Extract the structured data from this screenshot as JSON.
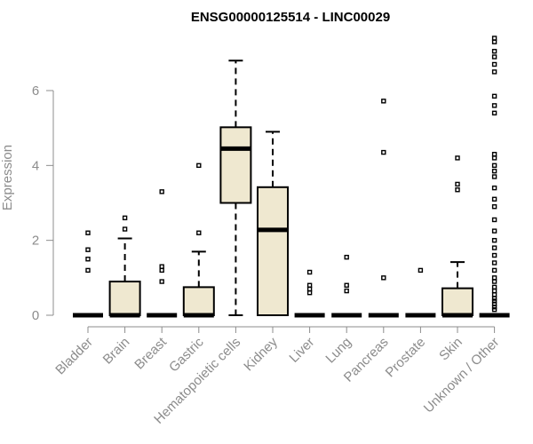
{
  "chart_data": {
    "type": "boxplot",
    "title": "ENSG00000125514 - LINC00029",
    "xlabel": "",
    "ylabel": "Expression",
    "ylim": [
      0,
      7.4
    ],
    "yticks": [
      0,
      2,
      4,
      6
    ],
    "categories": [
      "Bladder",
      "Brain",
      "Breast",
      "Gastric",
      "Hematopoietic cells",
      "Kidney",
      "Liver",
      "Lung",
      "Pancreas",
      "Prostate",
      "Skin",
      "Unknown / Other"
    ],
    "box_color": "#efe8d0",
    "boxes": [
      {
        "q1": 0,
        "median": 0,
        "q3": 0,
        "whisker_low": 0,
        "whisker_high": 0,
        "outliers": [
          1.2,
          1.5,
          1.75,
          2.2
        ]
      },
      {
        "q1": 0,
        "median": 0,
        "q3": 0.9,
        "whisker_low": 0,
        "whisker_high": 2.05,
        "outliers": [
          2.3,
          2.6
        ]
      },
      {
        "q1": 0,
        "median": 0,
        "q3": 0,
        "whisker_low": 0,
        "whisker_high": 0,
        "outliers": [
          0.9,
          1.2,
          1.3,
          3.3
        ]
      },
      {
        "q1": 0,
        "median": 0,
        "q3": 0.75,
        "whisker_low": 0,
        "whisker_high": 1.7,
        "outliers": [
          2.2,
          4.0
        ]
      },
      {
        "q1": 3.0,
        "median": 4.45,
        "q3": 5.02,
        "whisker_low": 0,
        "whisker_high": 6.8,
        "outliers": []
      },
      {
        "q1": 0,
        "median": 2.28,
        "q3": 3.42,
        "whisker_low": 0,
        "whisker_high": 4.9,
        "outliers": []
      },
      {
        "q1": 0,
        "median": 0,
        "q3": 0,
        "whisker_low": 0,
        "whisker_high": 0,
        "outliers": [
          0.6,
          0.7,
          0.8,
          1.15
        ]
      },
      {
        "q1": 0,
        "median": 0,
        "q3": 0,
        "whisker_low": 0,
        "whisker_high": 0,
        "outliers": [
          0.65,
          0.8,
          1.55
        ]
      },
      {
        "q1": 0,
        "median": 0,
        "q3": 0,
        "whisker_low": 0,
        "whisker_high": 0,
        "outliers": [
          1.0,
          4.35,
          5.72
        ]
      },
      {
        "q1": 0,
        "median": 0,
        "q3": 0,
        "whisker_low": 0,
        "whisker_high": 0,
        "outliers": [
          1.2
        ]
      },
      {
        "q1": 0,
        "median": 0,
        "q3": 0.72,
        "whisker_low": 0,
        "whisker_high": 1.42,
        "outliers": [
          3.35,
          3.5,
          4.2
        ]
      },
      {
        "q1": 0,
        "median": 0,
        "q3": 0,
        "whisker_low": 0,
        "whisker_high": 0,
        "outliers": [
          0.15,
          0.22,
          0.3,
          0.38,
          0.45,
          0.55,
          0.65,
          0.75,
          0.9,
          1.0,
          1.2,
          1.4,
          1.6,
          1.8,
          2.0,
          2.25,
          2.55,
          2.9,
          3.1,
          3.4,
          3.7,
          3.85,
          4.0,
          4.2,
          4.3,
          5.4,
          5.6,
          5.85,
          6.5,
          6.7,
          6.9,
          7.05,
          7.3,
          7.4
        ]
      }
    ]
  }
}
